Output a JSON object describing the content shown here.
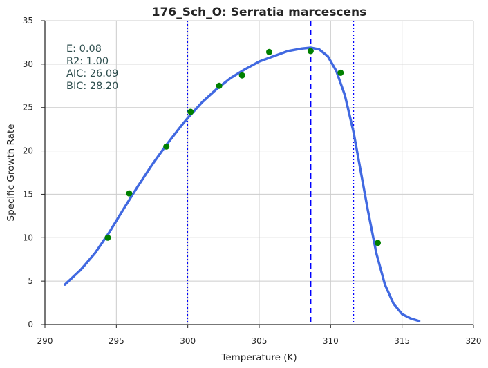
{
  "chart_data": {
    "type": "scatter",
    "title": "176_Sch_O: Serratia marcescens",
    "xlabel": "Temperature (K)",
    "ylabel": "Specific Growth Rate",
    "xlim": [
      290,
      320
    ],
    "ylim": [
      0,
      35
    ],
    "x_ticks": [
      "290",
      "295",
      "300",
      "305",
      "310",
      "315",
      "320"
    ],
    "y_ticks": [
      "0",
      "5",
      "10",
      "15",
      "20",
      "25",
      "30",
      "35"
    ],
    "grid": true,
    "points": {
      "color": "#008000",
      "x": [
        294.4,
        295.9,
        298.5,
        300.2,
        302.2,
        303.8,
        305.7,
        308.6,
        310.7,
        313.3
      ],
      "y": [
        10.0,
        15.1,
        20.5,
        24.5,
        27.5,
        28.7,
        31.4,
        31.5,
        29.0,
        9.4
      ]
    },
    "fit_curve": {
      "color": "#4169e1",
      "x": [
        291.4,
        292.5,
        293.5,
        294.5,
        295.5,
        296.5,
        297.5,
        298.5,
        299.5,
        300.0,
        301.0,
        302.0,
        303.0,
        304.0,
        305.0,
        306.0,
        307.0,
        308.0,
        308.6,
        309.2,
        309.8,
        310.4,
        311.0,
        311.6,
        312.0,
        312.6,
        313.2,
        313.8,
        314.4,
        315.0,
        315.6,
        316.2
      ],
      "y": [
        4.6,
        6.3,
        8.2,
        10.6,
        13.3,
        15.9,
        18.4,
        20.7,
        22.8,
        23.8,
        25.6,
        27.1,
        28.4,
        29.4,
        30.3,
        30.9,
        31.5,
        31.8,
        31.9,
        31.7,
        30.9,
        29.2,
        26.4,
        22.2,
        18.6,
        13.2,
        8.2,
        4.6,
        2.4,
        1.2,
        0.7,
        0.4
      ]
    },
    "vertical_lines": [
      {
        "x": 299.98,
        "style": "dotted",
        "color": "#0000ff"
      },
      {
        "x": 308.6,
        "style": "dashed",
        "color": "#0000ff"
      },
      {
        "x": 311.6,
        "style": "dotted",
        "color": "#0000ff"
      }
    ],
    "annotations": [
      "E:  0.08",
      "R2:  1.00",
      "AIC: 26.09",
      "BIC: 28.20"
    ]
  }
}
